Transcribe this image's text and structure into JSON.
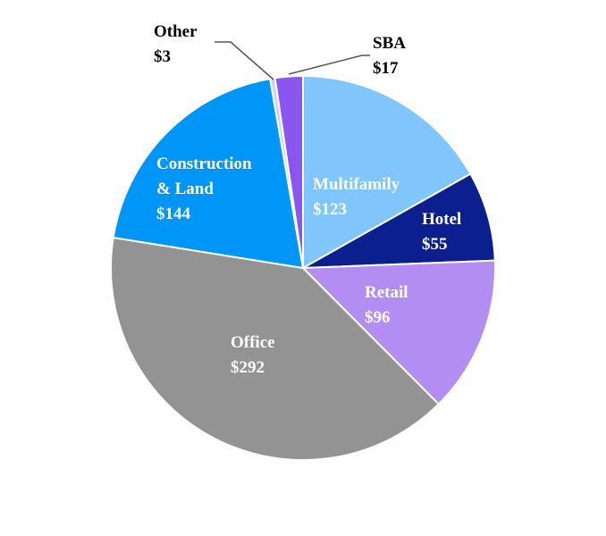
{
  "chart_data": {
    "type": "pie",
    "title": "",
    "start": "12 o'clock, clockwise",
    "slices": [
      {
        "label": "Multifamily",
        "value": 123,
        "value_label": "$123",
        "color": "#80C5FB"
      },
      {
        "label": "Hotel",
        "value": 55,
        "value_label": "$55",
        "color": "#0B1F8F"
      },
      {
        "label": "Retail",
        "value": 96,
        "value_label": "$96",
        "color": "#B28DF2"
      },
      {
        "label": "Office",
        "value": 292,
        "value_label": "$292",
        "color": "#939393"
      },
      {
        "label": "Construction & Land",
        "value": 144,
        "value_label": "$144",
        "color": "#0096F8"
      },
      {
        "label": "Other",
        "value": 3,
        "value_label": "$3",
        "color": "#C9D2F6"
      },
      {
        "label": "SBA",
        "value": 17,
        "value_label": "$17",
        "color": "#8B55EF"
      }
    ]
  }
}
